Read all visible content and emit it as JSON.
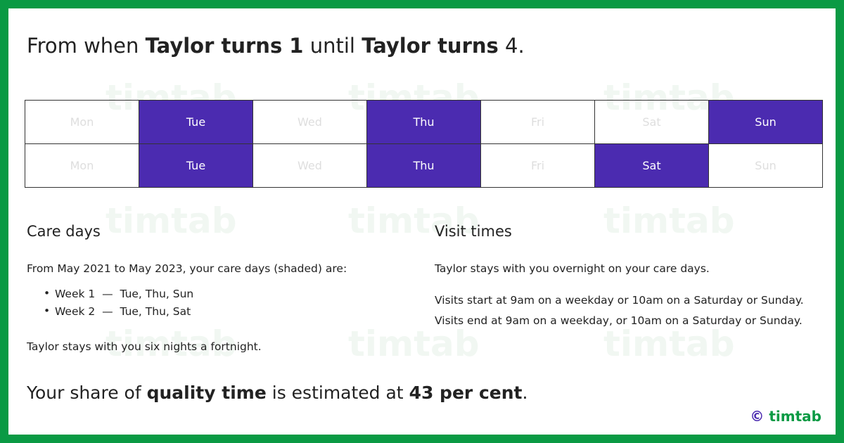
{
  "headline": [
    {
      "text": "From when ",
      "bold": false
    },
    {
      "text": "Taylor turns 1",
      "bold": true
    },
    {
      "text": " until ",
      "bold": false
    },
    {
      "text": "Taylor turns",
      "bold": true
    },
    {
      "text": " 4",
      "bold": false
    },
    {
      "text": ".",
      "bold": false
    }
  ],
  "watermark": "timtab",
  "calendar": {
    "weeks": [
      {
        "days": [
          {
            "label": "Mon",
            "shaded": false
          },
          {
            "label": "Tue",
            "shaded": true
          },
          {
            "label": "Wed",
            "shaded": false
          },
          {
            "label": "Thu",
            "shaded": true
          },
          {
            "label": "Fri",
            "shaded": false
          },
          {
            "label": "Sat",
            "shaded": false
          },
          {
            "label": "Sun",
            "shaded": true
          }
        ]
      },
      {
        "days": [
          {
            "label": "Mon",
            "shaded": false
          },
          {
            "label": "Tue",
            "shaded": true
          },
          {
            "label": "Wed",
            "shaded": false
          },
          {
            "label": "Thu",
            "shaded": true
          },
          {
            "label": "Fri",
            "shaded": false
          },
          {
            "label": "Sat",
            "shaded": true
          },
          {
            "label": "Sun",
            "shaded": false
          }
        ]
      }
    ],
    "shade_color": "#4b2bb0"
  },
  "care_days": {
    "heading": "Care days",
    "intro": "From May 2021 to May 2023, your care days (shaded) are:",
    "items": [
      "Week 1  —  Tue, Thu, Sun",
      "Week 2  —  Tue, Thu, Sat"
    ],
    "note": "Taylor stays with you six nights a fortnight."
  },
  "visit_times": {
    "heading": "Visit times",
    "paragraphs": [
      "Taylor stays with you overnight on your care days.",
      "Visits start at 9am on a weekday or 10am on a Saturday or Sunday.",
      "Visits end at 9am on a weekday, or 10am on a Saturday or Sunday."
    ]
  },
  "summary": [
    {
      "text": "Your share of ",
      "bold": false
    },
    {
      "text": "quality time",
      "bold": true
    },
    {
      "text": " is estimated at ",
      "bold": false
    },
    {
      "text": "43 per cent",
      "bold": true
    },
    {
      "text": ".",
      "bold": false
    }
  ],
  "logo": {
    "symbol": "©",
    "name": "timtab"
  }
}
